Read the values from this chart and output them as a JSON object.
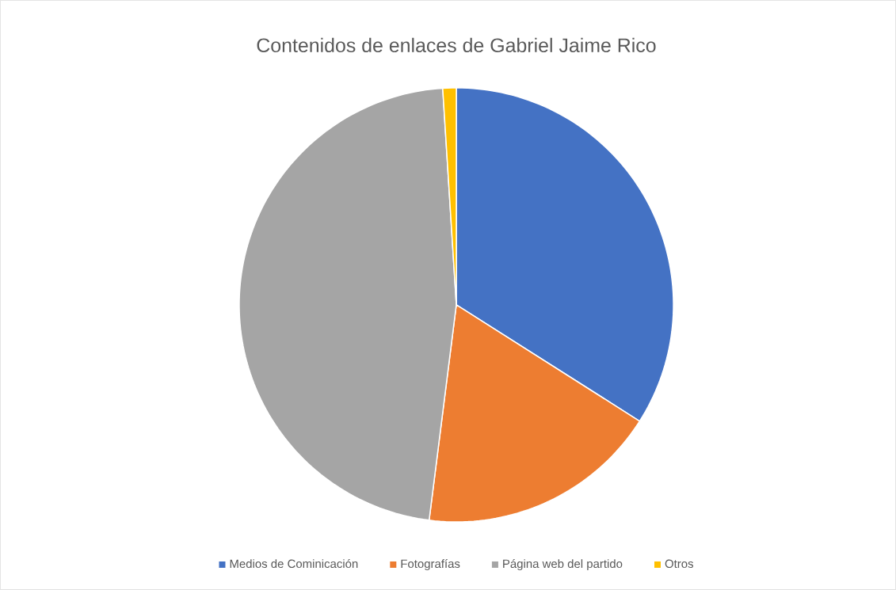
{
  "chart_data": {
    "type": "pie",
    "title": "Contenidos de enlaces de Gabriel Jaime Rico",
    "categories": [
      "Medios de Cominicación",
      "Fotografías",
      "Página web del partido",
      "Otros"
    ],
    "values": [
      34,
      18,
      47,
      1
    ],
    "colors": [
      "#4472c4",
      "#ed7d31",
      "#a5a5a5",
      "#ffc000"
    ],
    "legend": "bottom"
  }
}
